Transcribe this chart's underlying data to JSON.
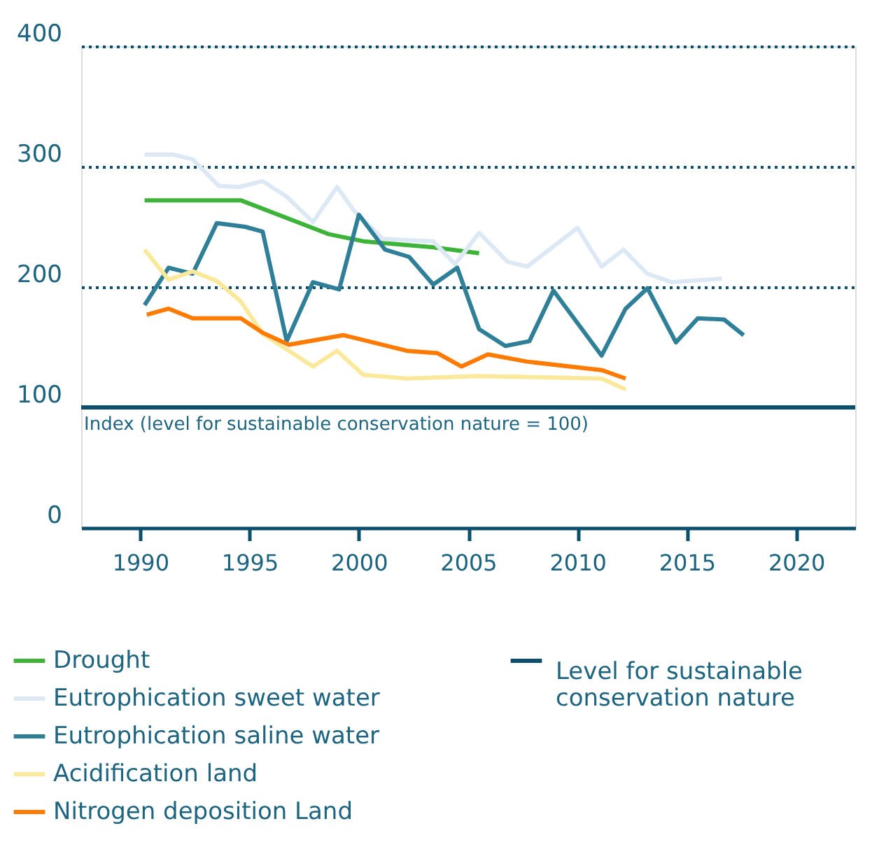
{
  "chart_data": {
    "type": "line",
    "xlim": [
      1987.3,
      2022.7
    ],
    "xticks": [
      1990,
      1995,
      2000,
      2005,
      2010,
      2015,
      2020
    ],
    "ylim": [
      0,
      400
    ],
    "yticks": [
      0,
      100,
      200,
      300,
      400
    ],
    "grid": "y",
    "legend": "bottom",
    "line_style": "solid",
    "marker": "none",
    "series": [
      {
        "name": "Drought",
        "color": "#3db33a",
        "x": [
          1990.2,
          1994.6,
          1998.6,
          2000.2,
          2003.4,
          2005.5
        ],
        "values": [
          272,
          272,
          244,
          238,
          233,
          228
        ]
      },
      {
        "name": "Eutrophication sweet water",
        "color": "#dce9f5",
        "x": [
          1990.2,
          1991.5,
          1992.4,
          1993.6,
          1994.5,
          1995.6,
          1996.7,
          1997.9,
          1999.0,
          1999.8,
          2001.1,
          2003.4,
          2004.4,
          2005.5,
          2006.8,
          2007.7,
          2010.0,
          2011.1,
          2012.1,
          2013.2,
          2014.3,
          2016.6
        ],
        "values": [
          310,
          310,
          306,
          284,
          283,
          288,
          275,
          254,
          283,
          263,
          240,
          238,
          219,
          245,
          221,
          217,
          249,
          217,
          231,
          211,
          204,
          207
        ]
      },
      {
        "name": "Eutrophication saline water",
        "color": "#2e7f97",
        "x": [
          1990.2,
          1991.3,
          1992.4,
          1993.5,
          1994.8,
          1995.6,
          1996.7,
          1997.9,
          1999.1,
          2000.0,
          2001.2,
          2002.3,
          2003.4,
          2004.5,
          2005.5,
          2006.7,
          2007.8,
          2008.9,
          2011.1,
          2012.2,
          2013.2,
          2014.5,
          2015.5,
          2016.7,
          2017.6
        ],
        "values": [
          185,
          216,
          211,
          253,
          250,
          246,
          155,
          204,
          198,
          260,
          231,
          225,
          202,
          216,
          165,
          151,
          155,
          197,
          143,
          182,
          199,
          154,
          174,
          173,
          160
        ]
      },
      {
        "name": "Acidification land",
        "color": "#fbe99b",
        "x": [
          1990.2,
          1991.3,
          1992.4,
          1993.5,
          1994.6,
          1995.6,
          1996.8,
          1997.9,
          1999.0,
          2000.2,
          2002.2,
          2005.4,
          2011.1,
          2012.2
        ],
        "values": [
          231,
          206,
          213,
          205,
          188,
          161,
          147,
          134,
          147,
          127,
          124,
          126,
          124,
          115
        ]
      },
      {
        "name": "Nitrogen deposition Land",
        "color": "#ff7a00",
        "x": [
          1990.3,
          1991.3,
          1992.4,
          1994.6,
          1995.6,
          1996.8,
          1999.3,
          2002.2,
          2003.6,
          2004.7,
          2005.9,
          2007.7,
          2011.1,
          2012.2
        ],
        "values": [
          177,
          182,
          174,
          174,
          162,
          152,
          160,
          147,
          145,
          134,
          144,
          138,
          131,
          124
        ]
      }
    ],
    "ref_lines": [
      {
        "axis": "y",
        "value": 100,
        "label": "Level for sustainable conservation nature",
        "color": "#0b4f6c",
        "line_style": "solid"
      }
    ],
    "annotations": [
      "Index (level for sustainable conservation nature = 100)"
    ]
  }
}
